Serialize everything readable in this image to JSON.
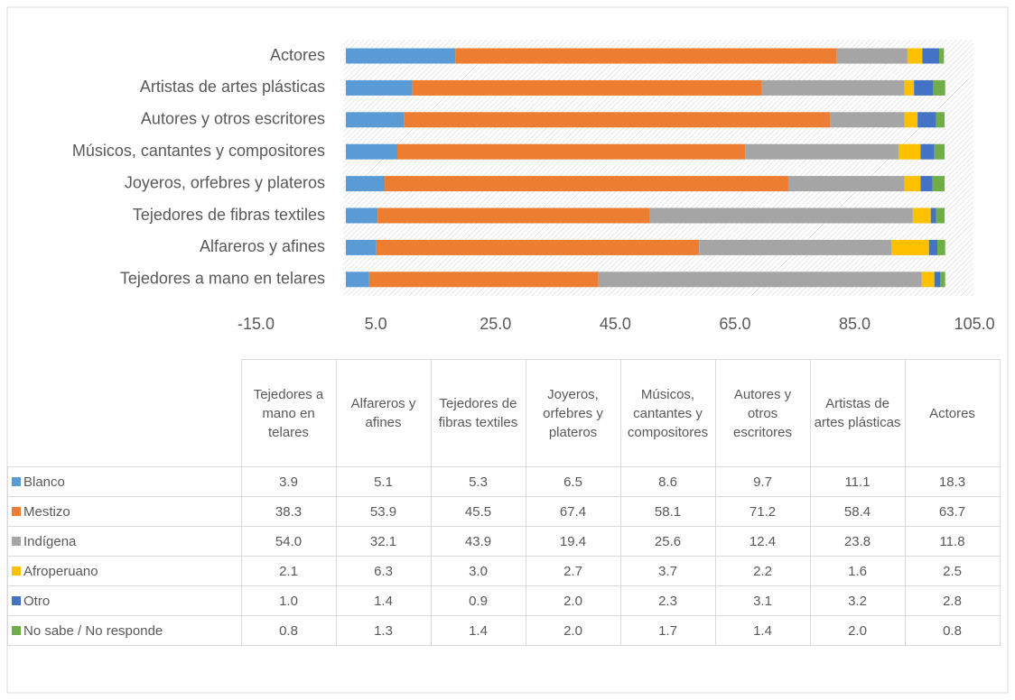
{
  "chart_data": {
    "type": "stacked_bar_horizontal",
    "categories": [
      "Tejedores a mano en telares",
      "Alfareros y afines",
      "Tejedores de fibras textiles",
      "Joyeros, orfebres y plateros",
      "Músicos, cantantes y compositores",
      "Autores y otros escritores",
      "Artistas de artes plásticas",
      "Actores"
    ],
    "series": [
      {
        "name": "Blanco",
        "color": "#5b9bd5",
        "values": [
          3.9,
          5.1,
          5.3,
          6.5,
          8.6,
          9.7,
          11.1,
          18.3
        ],
        "value_labels": [
          "3.9",
          "5.1",
          "5.3",
          "6.5",
          "8.6",
          "9.7",
          "11.1",
          "18.3"
        ]
      },
      {
        "name": "Mestizo",
        "color": "#ed7d31",
        "values": [
          38.3,
          53.9,
          45.5,
          67.4,
          58.1,
          71.2,
          58.4,
          63.7
        ],
        "value_labels": [
          "38.3",
          "53.9",
          "45.5",
          "67.4",
          "58.1",
          "71.2",
          "58.4",
          "63.7"
        ]
      },
      {
        "name": "Indígena",
        "color": "#a5a5a5",
        "values": [
          54,
          32.1,
          43.9,
          19.4,
          25.6,
          12.4,
          23.8,
          11.8
        ],
        "value_labels": [
          "54.0",
          "32.1",
          "43.9",
          "19.4",
          "25.6",
          "12.4",
          "23.8",
          "11.8"
        ]
      },
      {
        "name": "Afroperuano",
        "color": "#ffc000",
        "values": [
          2.1,
          6.3,
          3,
          2.7,
          3.7,
          2.2,
          1.6,
          2.5
        ],
        "value_labels": [
          "2.1",
          "6.3",
          "3.0",
          "2.7",
          "3.7",
          "2.2",
          "1.6",
          "2.5"
        ]
      },
      {
        "name": "Otro",
        "color": "#4472c4",
        "values": [
          1,
          1.4,
          0.9,
          2,
          2.3,
          3.1,
          3.2,
          2.8
        ],
        "value_labels": [
          "1.0",
          "1.4",
          "0.9",
          "2.0",
          "2.3",
          "3.1",
          "3.2",
          "2.8"
        ]
      },
      {
        "name": "No sabe /  No responde",
        "color": "#70ad47",
        "values": [
          0.8,
          1.3,
          1.4,
          2,
          1.7,
          1.4,
          2,
          0.8
        ],
        "value_labels": [
          "0.8",
          "1.3",
          "1.4",
          "2.0",
          "1.7",
          "1.4",
          "2.0",
          "0.8"
        ]
      }
    ],
    "xlim": [
      -15,
      105
    ],
    "xticks": [
      {
        "value": -15,
        "label": "-15.0"
      },
      {
        "value": 5,
        "label": "5.0"
      },
      {
        "value": 25,
        "label": "25.0"
      },
      {
        "value": 45,
        "label": "45.0"
      },
      {
        "value": 65,
        "label": "65.0"
      },
      {
        "value": 85,
        "label": "85.0"
      },
      {
        "value": 105,
        "label": "105.0"
      }
    ],
    "data_table": true
  }
}
